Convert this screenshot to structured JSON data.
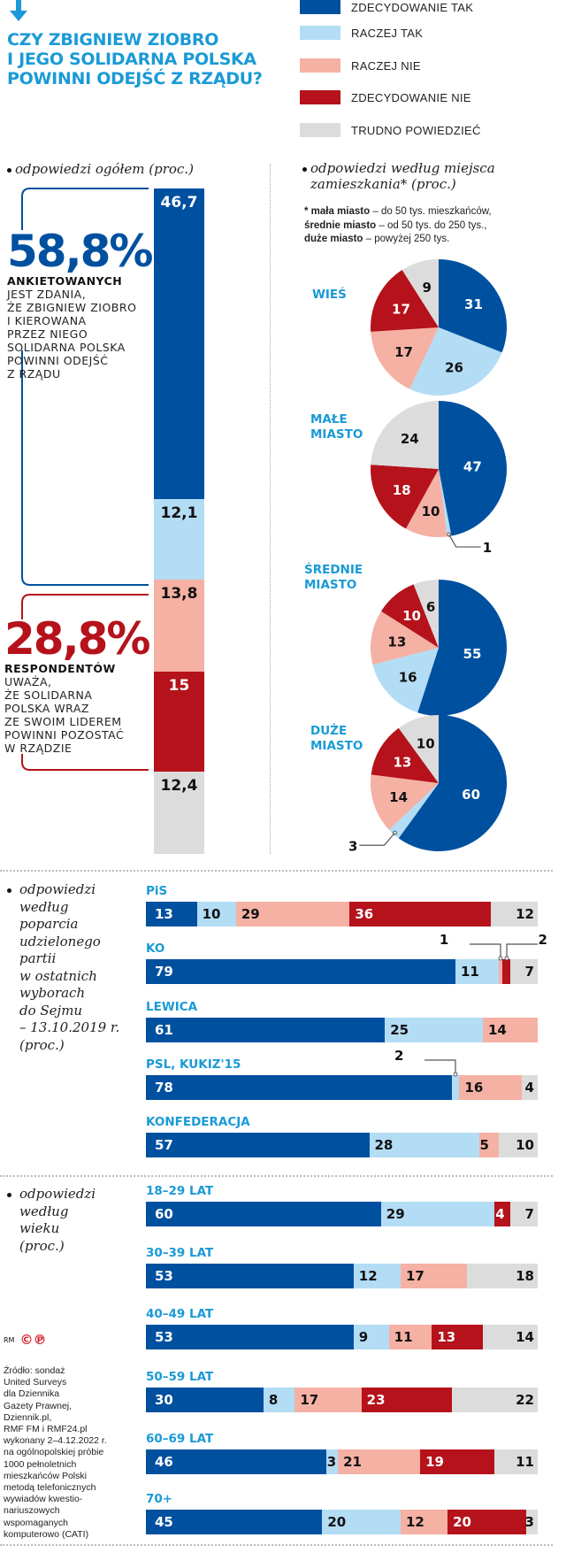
{
  "header": {
    "arrow_icon": "arrow-down-icon",
    "title_lines": [
      "CZY ZBIGNIEW ZIOBRO",
      "I JEGO SOLIDARNA POLSKA",
      "POWINNI ODEJŚĆ Z RZĄDU?"
    ]
  },
  "legend": [
    {
      "label": "ZDECYDOWANIE TAK",
      "color": "#0050a0"
    },
    {
      "label": "RACZEJ TAK",
      "color": "#b3dcf5"
    },
    {
      "label": "RACZEJ NIE",
      "color": "#f5b1a4"
    },
    {
      "label": "ZDECYDOWANIE NIE",
      "color": "#b5121b"
    },
    {
      "label": "TRUDNO POWIEDZIEĆ",
      "color": "#dcdcdc"
    }
  ],
  "overall": {
    "heading": "odpowiedzi ogółem (proc.)",
    "yes_pct": "58,8%",
    "yes_head": "ANKIETOWANYCH",
    "yes_body": [
      "JEST ZDANIA,",
      "ŻE ZBIGNIEW ZIOBRO",
      "I KIEROWANA",
      "PRZEZ NIEGO",
      "SOLIDARNA POLSKA",
      "POWINNI ODEJŚĆ",
      "Z RZĄDU"
    ],
    "no_pct": "28,8%",
    "no_head": "RESPONDENTÓW",
    "no_body": [
      "UWAŻA,",
      "ŻE SOLIDARNA",
      "POLSKA WRAZ",
      "ZE SWOIM LIDEREM",
      "POWINNI POZOSTAĆ",
      "W RZĄDZIE"
    ],
    "accent_yes": "#0050a0",
    "accent_no": "#b5121b"
  },
  "places": {
    "heading_lines": [
      "odpowiedzi według miejsca",
      "zamieszkania* (proc.)"
    ],
    "footnote": [
      {
        "bold": "* mała miasto",
        "rest": " – do 50 tys. mieszkańców,"
      },
      {
        "bold": "średnie miasto",
        "rest": " – od 50 tys. do 250 tys.,"
      },
      {
        "bold": "duże miasto",
        "rest": " – powyżej 250 tys."
      }
    ]
  },
  "party": {
    "heading_lines": [
      "odpowiedzi",
      "według",
      "poparcia",
      "udzielonego",
      "partii",
      "w ostatnich",
      "wyborach",
      "do Sejmu",
      "– 13.10.2019 r.",
      "(proc.)"
    ]
  },
  "age": {
    "heading_lines": [
      "odpowiedzi",
      "według",
      "wieku",
      "(proc.)"
    ]
  },
  "credits": {
    "rm": "RM",
    "marks": "©℗",
    "source_lines": [
      "Źródło: sondaż",
      "United Surveys",
      "dla Dziennika",
      "Gazety Prawnej,",
      "Dziennik.pl,",
      "RMF FM i RMF24.pl",
      "wykonany 2–4.12.2022 r.",
      "na ogólnopolskiej próbie",
      "1000 pełnoletnich",
      "mieszkańców Polski",
      "metodą telefonicznych",
      "wywiadów kwestio-",
      "nariuszowych",
      "wspomaganych",
      "komputerowo (CATI)"
    ]
  },
  "chart_data": [
    {
      "type": "bar",
      "stacked": true,
      "orientation": "vertical",
      "title": "odpowiedzi ogółem (proc.)",
      "categories": [
        "ZDECYDOWANIE TAK",
        "RACZEJ TAK",
        "RACZEJ NIE",
        "ZDECYDOWANIE NIE",
        "TRUDNO POWIEDZIEĆ"
      ],
      "values": [
        46.7,
        12.1,
        13.8,
        15,
        12.4
      ],
      "labels": [
        "46,7",
        "12,1",
        "13,8",
        "15",
        "12,4"
      ]
    },
    {
      "type": "pie",
      "title": "odpowiedzi według miejsca zamieszkania* (proc.)",
      "slice_order": [
        "ZDECYDOWANIE TAK",
        "RACZEJ TAK",
        "RACZEJ NIE",
        "ZDECYDOWANIE NIE",
        "TRUDNO POWIEDZIEĆ"
      ],
      "pies": [
        {
          "name_lines": [
            "WIEŚ"
          ],
          "values": [
            31,
            26,
            17,
            17,
            9
          ]
        },
        {
          "name_lines": [
            "MAŁE",
            "MIASTO"
          ],
          "values": [
            47,
            1,
            10,
            18,
            24
          ]
        },
        {
          "name_lines": [
            "ŚREDNIE",
            "MIASTO"
          ],
          "values": [
            55,
            16,
            13,
            10,
            6
          ]
        },
        {
          "name_lines": [
            "DUŻE",
            "MIASTO"
          ],
          "values": [
            60,
            3,
            14,
            13,
            10
          ]
        }
      ]
    },
    {
      "type": "bar",
      "stacked": true,
      "orientation": "horizontal",
      "title": "odpowiedzi według poparcia udzielonego partii w ostatnich wyborach do Sejmu – 13.10.2019 r. (proc.)",
      "series_order": [
        "ZDECYDOWANIE TAK",
        "RACZEJ TAK",
        "RACZEJ NIE",
        "ZDECYDOWANIE NIE",
        "TRUDNO POWIEDZIEĆ"
      ],
      "rows": [
        {
          "label": "PiS",
          "values": [
            13,
            10,
            29,
            36,
            12
          ]
        },
        {
          "label": "KO",
          "values": [
            79,
            11,
            1,
            2,
            7
          ]
        },
        {
          "label": "LEWICA",
          "values": [
            61,
            25,
            14,
            0,
            0
          ]
        },
        {
          "label": "PSL, KUKIZ'15",
          "values": [
            78,
            2,
            16,
            0,
            4
          ]
        },
        {
          "label": "KONFEDERACJA",
          "values": [
            57,
            28,
            5,
            0,
            10
          ]
        }
      ]
    },
    {
      "type": "bar",
      "stacked": true,
      "orientation": "horizontal",
      "title": "odpowiedzi według wieku (proc.)",
      "series_order": [
        "ZDECYDOWANIE TAK",
        "RACZEJ TAK",
        "RACZEJ NIE",
        "ZDECYDOWANIE NIE",
        "TRUDNO POWIEDZIEĆ"
      ],
      "rows": [
        {
          "label": "18–29 LAT",
          "values": [
            60,
            29,
            0,
            4,
            7
          ]
        },
        {
          "label": "30–39 LAT",
          "values": [
            53,
            12,
            17,
            0,
            18
          ]
        },
        {
          "label": "40–49 LAT",
          "values": [
            53,
            9,
            11,
            13,
            14
          ]
        },
        {
          "label": "50–59 LAT",
          "values": [
            30,
            8,
            17,
            23,
            22
          ]
        },
        {
          "label": "60–69 LAT",
          "values": [
            46,
            3,
            21,
            19,
            11
          ]
        },
        {
          "label": "70+",
          "values": [
            45,
            20,
            12,
            20,
            3
          ]
        }
      ]
    }
  ]
}
